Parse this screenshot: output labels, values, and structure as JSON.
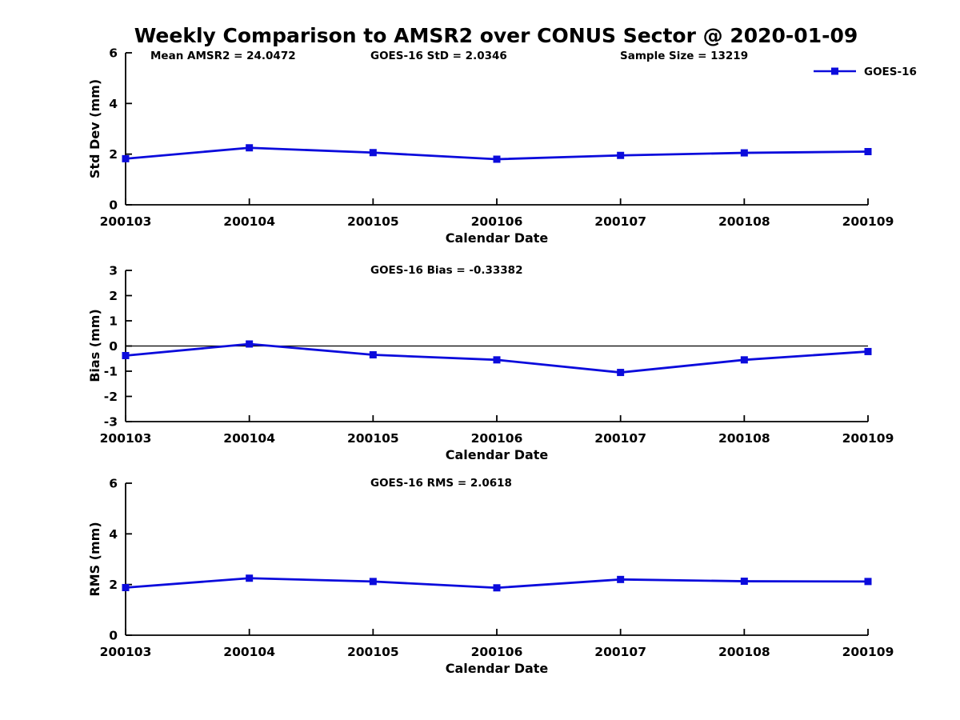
{
  "figure": {
    "title": "Weekly Comparison to AMSR2 over CONUS Sector @ 2020-01-09",
    "accent_color": "#0b0bdc",
    "axis_color": "#000000"
  },
  "chart_data": [
    {
      "type": "line",
      "annotations": [
        "Mean AMSR2 = 24.0472",
        "GOES-16 StD = 2.0346",
        "Sample Size = 13219"
      ],
      "ylabel": "Std Dev (mm)",
      "xlabel": "Calendar Date",
      "categories": [
        "200103",
        "200104",
        "200105",
        "200106",
        "200107",
        "200108",
        "200109"
      ],
      "series": [
        {
          "name": "GOES-16",
          "values": [
            1.82,
            2.25,
            2.06,
            1.8,
            1.95,
            2.05,
            2.1
          ]
        }
      ],
      "ylim": [
        0,
        6
      ],
      "yticks": [
        0,
        2,
        4,
        6
      ],
      "zero_line": false,
      "grid": false,
      "legend": {
        "label": "GOES-16",
        "position": "top-right"
      }
    },
    {
      "type": "line",
      "annotations": [
        "GOES-16 Bias  = -0.33382"
      ],
      "ylabel": "Bias (mm)",
      "xlabel": "Calendar Date",
      "categories": [
        "200103",
        "200104",
        "200105",
        "200106",
        "200107",
        "200108",
        "200109"
      ],
      "series": [
        {
          "name": "GOES-16",
          "values": [
            -0.38,
            0.08,
            -0.35,
            -0.55,
            -1.05,
            -0.55,
            -0.22
          ]
        }
      ],
      "ylim": [
        -3,
        3
      ],
      "yticks": [
        -3,
        -2,
        -1,
        0,
        1,
        2,
        3
      ],
      "zero_line": true,
      "grid": false
    },
    {
      "type": "line",
      "annotations": [
        "GOES-16 RMS = 2.0618"
      ],
      "ylabel": "RMS (mm)",
      "xlabel": "Calendar Date",
      "categories": [
        "200103",
        "200104",
        "200105",
        "200106",
        "200107",
        "200108",
        "200109"
      ],
      "series": [
        {
          "name": "GOES-16",
          "values": [
            1.88,
            2.25,
            2.12,
            1.87,
            2.2,
            2.13,
            2.12
          ]
        }
      ],
      "ylim": [
        0,
        6
      ],
      "yticks": [
        0,
        2,
        4,
        6
      ],
      "zero_line": false,
      "grid": false
    }
  ]
}
